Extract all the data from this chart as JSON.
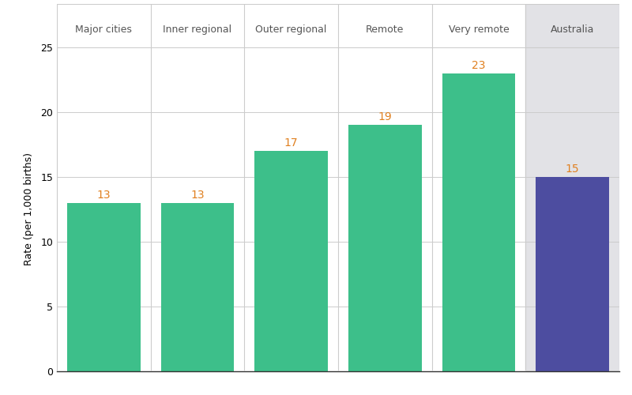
{
  "categories": [
    "Major cities",
    "Inner regional",
    "Outer regional",
    "Remote",
    "Very remote",
    "Australia"
  ],
  "values": [
    13,
    13,
    17,
    19,
    23,
    15
  ],
  "bar_colors": [
    "#3dbf8a",
    "#3dbf8a",
    "#3dbf8a",
    "#3dbf8a",
    "#3dbf8a",
    "#4d4da0"
  ],
  "label_color": "#e08020",
  "australia_bg": "#e2e2e6",
  "main_bg": "#ffffff",
  "ylabel": "Rate (per 1,000 births)",
  "ylim": [
    0,
    25
  ],
  "yticks": [
    0,
    5,
    10,
    15,
    20,
    25
  ],
  "grid_color": "#cccccc",
  "separator_color": "#cccccc",
  "label_fontsize": 10,
  "category_fontsize": 9,
  "ylabel_fontsize": 9,
  "tick_fontsize": 9,
  "bar_width": 0.78,
  "header_color": "#555555",
  "axis_color": "#333333"
}
